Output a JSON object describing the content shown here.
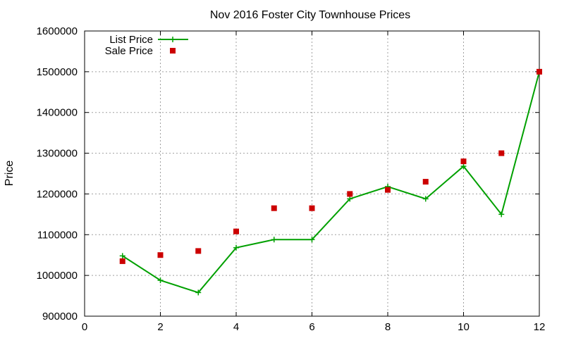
{
  "chart_data": {
    "type": "line",
    "title": "Nov 2016 Foster City Townhouse Prices",
    "xlabel": "",
    "ylabel": "Price",
    "xlim": [
      0,
      12
    ],
    "ylim": [
      900000,
      1600000
    ],
    "xticks": [
      0,
      2,
      4,
      6,
      8,
      10,
      12
    ],
    "yticks": [
      900000,
      1000000,
      1100000,
      1200000,
      1300000,
      1400000,
      1500000,
      1600000
    ],
    "grid": true,
    "legend_position": "top-left",
    "series": [
      {
        "name": "List Price",
        "style": "line-with-plus-markers",
        "color": "#00a000",
        "x": [
          1,
          2,
          3,
          4,
          5,
          6,
          7,
          8,
          9,
          10,
          11,
          12
        ],
        "y": [
          1048000,
          988000,
          958000,
          1068000,
          1088000,
          1088000,
          1188000,
          1218000,
          1188000,
          1268000,
          1150000,
          1500000
        ]
      },
      {
        "name": "Sale Price",
        "style": "square-markers",
        "color": "#cc0000",
        "x": [
          1,
          2,
          3,
          4,
          5,
          6,
          7,
          8,
          9,
          10,
          11,
          12
        ],
        "y": [
          1035000,
          1050000,
          1060000,
          1108000,
          1165000,
          1165000,
          1200000,
          1210000,
          1230000,
          1280000,
          1300000,
          1500000
        ]
      }
    ]
  }
}
